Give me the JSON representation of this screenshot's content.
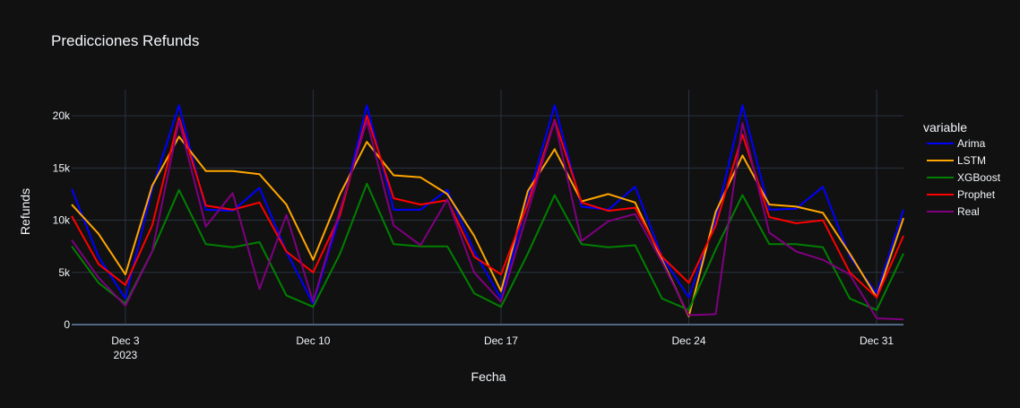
{
  "chart_data": {
    "type": "line",
    "title": "Predicciones Refunds",
    "xlabel": "Fecha",
    "ylabel": "Refunds",
    "legend_title": "variable",
    "legend_placement": "right",
    "grid": true,
    "x_range": [
      "2023-12-01",
      "2024-01-01"
    ],
    "ylim": [
      0,
      22500
    ],
    "x_ticks": [
      {
        "date": "2023-12-03",
        "label": "Dec 3",
        "sublabel": "2023"
      },
      {
        "date": "2023-12-10",
        "label": "Dec 10",
        "sublabel": ""
      },
      {
        "date": "2023-12-17",
        "label": "Dec 17",
        "sublabel": ""
      },
      {
        "date": "2023-12-24",
        "label": "Dec 24",
        "sublabel": ""
      },
      {
        "date": "2023-12-31",
        "label": "Dec 31",
        "sublabel": ""
      }
    ],
    "y_ticks": [
      {
        "value": 0,
        "label": "0"
      },
      {
        "value": 5000,
        "label": "5k"
      },
      {
        "value": 10000,
        "label": "10k"
      },
      {
        "value": 15000,
        "label": "15k"
      },
      {
        "value": 20000,
        "label": "20k"
      }
    ],
    "x": [
      "2023-12-01",
      "2023-12-02",
      "2023-12-03",
      "2023-12-04",
      "2023-12-05",
      "2023-12-06",
      "2023-12-07",
      "2023-12-08",
      "2023-12-09",
      "2023-12-10",
      "2023-12-11",
      "2023-12-12",
      "2023-12-13",
      "2023-12-14",
      "2023-12-15",
      "2023-12-16",
      "2023-12-17",
      "2023-12-18",
      "2023-12-19",
      "2023-12-20",
      "2023-12-21",
      "2023-12-22",
      "2023-12-23",
      "2023-12-24",
      "2023-12-25",
      "2023-12-26",
      "2023-12-27",
      "2023-12-28",
      "2023-12-29",
      "2023-12-30",
      "2023-12-31",
      "2024-01-01"
    ],
    "series": [
      {
        "name": "Arima",
        "color": "#0000ff",
        "values": [
          13000,
          6500,
          2500,
          13000,
          21000,
          11000,
          10900,
          13100,
          7000,
          2000,
          10500,
          21000,
          11000,
          11000,
          12900,
          7000,
          2500,
          12000,
          21000,
          11300,
          11000,
          13200,
          6500,
          2600,
          10000,
          21000,
          11000,
          11100,
          13200,
          6500,
          3000,
          11000
        ]
      },
      {
        "name": "LSTM",
        "color": "#ffa500",
        "values": [
          11500,
          8700,
          4800,
          13300,
          18000,
          14700,
          14700,
          14400,
          11500,
          6200,
          12500,
          17500,
          14300,
          14100,
          12500,
          8500,
          3200,
          12800,
          16800,
          11800,
          12500,
          11700,
          6200,
          800,
          10800,
          16200,
          11500,
          11300,
          10700,
          6800,
          2600,
          10200
        ]
      },
      {
        "name": "XGBoost",
        "color": "#008000",
        "values": [
          7500,
          4000,
          2000,
          7000,
          12900,
          7700,
          7400,
          7900,
          2800,
          1700,
          6800,
          13500,
          7700,
          7500,
          7500,
          3000,
          1700,
          6800,
          12400,
          7700,
          7400,
          7600,
          2500,
          1400,
          7200,
          12400,
          7700,
          7700,
          7400,
          2500,
          1400,
          6800
        ]
      },
      {
        "name": "Prophet",
        "color": "#ff0000",
        "values": [
          10400,
          5800,
          3800,
          9500,
          19800,
          11400,
          11000,
          11700,
          7000,
          5000,
          10500,
          20000,
          12100,
          11500,
          11900,
          6500,
          4800,
          11600,
          19600,
          11700,
          10900,
          11200,
          6500,
          4000,
          9500,
          18200,
          10300,
          9700,
          10000,
          5000,
          2600,
          8500
        ]
      },
      {
        "name": "Real",
        "color": "#800080",
        "values": [
          8100,
          4500,
          1800,
          7000,
          19500,
          9400,
          12600,
          3400,
          10500,
          2200,
          11000,
          19500,
          9500,
          7600,
          12000,
          5000,
          2200,
          10800,
          19500,
          8000,
          9900,
          10600,
          6000,
          900,
          1000,
          19300,
          8800,
          7000,
          6200,
          4800,
          600,
          500
        ]
      }
    ]
  }
}
